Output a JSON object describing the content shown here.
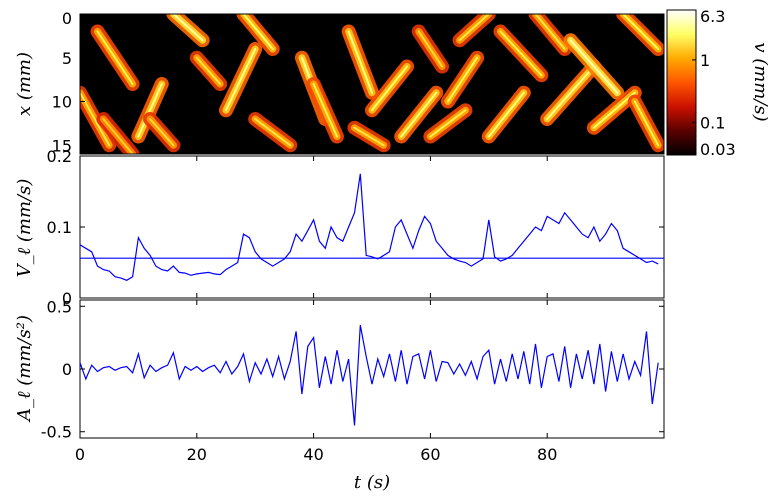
{
  "chart_data": [
    {
      "type": "heatmap",
      "title": "",
      "xlabel": "",
      "ylabel": "x (mm)",
      "xlim": [
        0,
        100
      ],
      "ylim": [
        0,
        16
      ],
      "y_inverted": true,
      "yticks": [
        0,
        5,
        10,
        15
      ],
      "ytick_labels": [
        "0",
        "5",
        "10",
        "15"
      ],
      "colorbar": {
        "label": "v (mm/s)",
        "scale": "log",
        "range": [
          0.03,
          6.3
        ],
        "ticks": [
          6.3,
          1,
          0.1,
          0.03
        ],
        "tick_labels": [
          "6.3",
          "1",
          "0.1",
          "0.03"
        ],
        "colormap": "hot",
        "colors": [
          "#000000",
          "#5a0000",
          "#cc1100",
          "#ff5500",
          "#ffaa00",
          "#ffff66",
          "#ffffff"
        ]
      },
      "bands": [
        {
          "t0": 0,
          "x0": 9,
          "t1": 5,
          "x1": 15,
          "v": 0.9
        },
        {
          "t0": 3,
          "x0": 2,
          "t1": 9,
          "x1": 8,
          "v": 1.0
        },
        {
          "t0": 4,
          "x0": 12,
          "t1": 9,
          "x1": 16,
          "v": 0.7
        },
        {
          "t0": 10,
          "x0": 14,
          "t1": 14,
          "x1": 8,
          "v": 1.4
        },
        {
          "t0": 12,
          "x0": 12,
          "t1": 16,
          "x1": 15,
          "v": 0.8
        },
        {
          "t0": 16,
          "x0": 0,
          "t1": 21,
          "x1": 3,
          "v": 1.6
        },
        {
          "t0": 20,
          "x0": 5,
          "t1": 24,
          "x1": 8,
          "v": 0.9
        },
        {
          "t0": 25,
          "x0": 11,
          "t1": 30,
          "x1": 4,
          "v": 1.4
        },
        {
          "t0": 28,
          "x0": 0,
          "t1": 33,
          "x1": 4,
          "v": 1.2
        },
        {
          "t0": 30,
          "x0": 12,
          "t1": 36,
          "x1": 15,
          "v": 0.9
        },
        {
          "t0": 38,
          "x0": 5,
          "t1": 42,
          "x1": 12,
          "v": 1.5
        },
        {
          "t0": 40,
          "x0": 8,
          "t1": 44,
          "x1": 14,
          "v": 1.0
        },
        {
          "t0": 46,
          "x0": 2,
          "t1": 50,
          "x1": 9,
          "v": 1.3
        },
        {
          "t0": 47,
          "x0": 13,
          "t1": 52,
          "x1": 15,
          "v": 0.9
        },
        {
          "t0": 50,
          "x0": 11,
          "t1": 56,
          "x1": 6,
          "v": 1.2
        },
        {
          "t0": 55,
          "x0": 14,
          "t1": 61,
          "x1": 9,
          "v": 1.3
        },
        {
          "t0": 58,
          "x0": 2,
          "t1": 62,
          "x1": 6,
          "v": 0.8
        },
        {
          "t0": 60,
          "x0": 14,
          "t1": 66,
          "x1": 11,
          "v": 1.0
        },
        {
          "t0": 63,
          "x0": 10,
          "t1": 68,
          "x1": 5,
          "v": 1.1
        },
        {
          "t0": 65,
          "x0": 3,
          "t1": 70,
          "x1": 0,
          "v": 0.9
        },
        {
          "t0": 70,
          "x0": 14,
          "t1": 76,
          "x1": 9,
          "v": 1.3
        },
        {
          "t0": 72,
          "x0": 2,
          "t1": 79,
          "x1": 7,
          "v": 1.0
        },
        {
          "t0": 78,
          "x0": 0,
          "t1": 83,
          "x1": 4,
          "v": 0.9
        },
        {
          "t0": 80,
          "x0": 12,
          "t1": 88,
          "x1": 6,
          "v": 1.4
        },
        {
          "t0": 84,
          "x0": 3,
          "t1": 92,
          "x1": 9,
          "v": 1.8
        },
        {
          "t0": 88,
          "x0": 13,
          "t1": 95,
          "x1": 9,
          "v": 1.2
        },
        {
          "t0": 93,
          "x0": 0,
          "t1": 99,
          "x1": 4,
          "v": 1.1
        },
        {
          "t0": 95,
          "x0": 10,
          "t1": 99,
          "x1": 15,
          "v": 1.0
        }
      ]
    },
    {
      "type": "line",
      "title": "",
      "xlabel": "",
      "ylabel": "V_ℓ (mm/s)",
      "xlim": [
        0,
        100
      ],
      "ylim": [
        0,
        0.2
      ],
      "yticks": [
        0,
        0.1,
        0.2
      ],
      "ytick_labels": [
        "0",
        "0.1",
        "0.2"
      ],
      "series": [
        {
          "color": "#0000ff",
          "x": [
            0,
            1,
            2,
            3,
            4,
            5,
            6,
            7,
            8,
            9,
            10,
            11,
            12,
            13,
            14,
            15,
            16,
            17,
            18,
            19,
            20,
            21,
            22,
            23,
            24,
            25,
            26,
            27,
            28,
            29,
            30,
            31,
            32,
            33,
            34,
            35,
            36,
            37,
            38,
            39,
            40,
            41,
            42,
            43,
            44,
            45,
            46,
            47,
            48,
            49,
            50,
            51,
            52,
            53,
            54,
            55,
            56,
            57,
            58,
            59,
            60,
            61,
            62,
            63,
            64,
            65,
            66,
            67,
            68,
            69,
            70,
            71,
            72,
            73,
            74,
            75,
            76,
            77,
            78,
            79,
            80,
            81,
            82,
            83,
            84,
            85,
            86,
            87,
            88,
            89,
            90,
            91,
            92,
            93,
            94,
            95,
            96,
            97,
            98,
            99
          ],
          "values": [
            0.075,
            0.07,
            0.065,
            0.045,
            0.04,
            0.038,
            0.03,
            0.028,
            0.025,
            0.03,
            0.085,
            0.07,
            0.06,
            0.045,
            0.04,
            0.038,
            0.045,
            0.036,
            0.035,
            0.032,
            0.034,
            0.035,
            0.036,
            0.034,
            0.033,
            0.04,
            0.045,
            0.05,
            0.09,
            0.085,
            0.065,
            0.055,
            0.05,
            0.045,
            0.05,
            0.055,
            0.065,
            0.09,
            0.08,
            0.095,
            0.11,
            0.08,
            0.07,
            0.1,
            0.085,
            0.08,
            0.1,
            0.12,
            0.175,
            0.06,
            0.058,
            0.055,
            0.06,
            0.065,
            0.1,
            0.11,
            0.09,
            0.07,
            0.095,
            0.115,
            0.105,
            0.08,
            0.07,
            0.06,
            0.055,
            0.052,
            0.05,
            0.045,
            0.05,
            0.055,
            0.11,
            0.058,
            0.052,
            0.055,
            0.06,
            0.07,
            0.08,
            0.09,
            0.1,
            0.095,
            0.115,
            0.11,
            0.105,
            0.12,
            0.11,
            0.1,
            0.09,
            0.085,
            0.1,
            0.08,
            0.09,
            0.105,
            0.095,
            0.07,
            0.065,
            0.06,
            0.055,
            0.05,
            0.052,
            0.048
          ]
        },
        {
          "color": "#0000ff",
          "x": [
            0,
            100
          ],
          "values": [
            0.056,
            0.056
          ]
        }
      ]
    },
    {
      "type": "line",
      "title": "",
      "xlabel": "t (s)",
      "ylabel": "A_ℓ (mm/s²)",
      "xlim": [
        0,
        100
      ],
      "ylim": [
        -0.55,
        0.55
      ],
      "yticks": [
        -0.5,
        0,
        0.5
      ],
      "ytick_labels": [
        "-0.5",
        "0",
        "0.5"
      ],
      "xticks": [
        0,
        20,
        40,
        60,
        80
      ],
      "xtick_labels": [
        "0",
        "20",
        "40",
        "60",
        "80"
      ],
      "series": [
        {
          "color": "#0000ff",
          "x": [
            0,
            1,
            2,
            3,
            4,
            5,
            6,
            7,
            8,
            9,
            10,
            11,
            12,
            13,
            14,
            15,
            16,
            17,
            18,
            19,
            20,
            21,
            22,
            23,
            24,
            25,
            26,
            27,
            28,
            29,
            30,
            31,
            32,
            33,
            34,
            35,
            36,
            37,
            38,
            39,
            40,
            41,
            42,
            43,
            44,
            45,
            46,
            47,
            48,
            49,
            50,
            51,
            52,
            53,
            54,
            55,
            56,
            57,
            58,
            59,
            60,
            61,
            62,
            63,
            64,
            65,
            66,
            67,
            68,
            69,
            70,
            71,
            72,
            73,
            74,
            75,
            76,
            77,
            78,
            79,
            80,
            81,
            82,
            83,
            84,
            85,
            86,
            87,
            88,
            89,
            90,
            91,
            92,
            93,
            94,
            95,
            96,
            97,
            98,
            99
          ],
          "values": [
            0.05,
            -0.08,
            0.03,
            -0.02,
            0.01,
            0.02,
            -0.01,
            0.01,
            0.02,
            -0.03,
            0.12,
            -0.07,
            0.03,
            -0.02,
            0.01,
            0.03,
            0.13,
            -0.08,
            0.02,
            -0.01,
            0.02,
            -0.02,
            0.01,
            0.03,
            -0.03,
            0.06,
            -0.04,
            0.02,
            0.12,
            -0.1,
            0.05,
            -0.04,
            0.08,
            -0.06,
            0.1,
            -0.08,
            0.06,
            0.3,
            -0.2,
            0.18,
            0.25,
            -0.15,
            0.1,
            -0.12,
            0.15,
            -0.1,
            0.08,
            -0.45,
            0.35,
            0.1,
            -0.12,
            0.08,
            -0.06,
            0.12,
            -0.1,
            0.15,
            -0.12,
            0.1,
            0.12,
            -0.08,
            0.15,
            -0.1,
            0.06,
            0.05,
            -0.04,
            0.04,
            -0.05,
            0.06,
            -0.08,
            0.1,
            0.15,
            -0.12,
            0.08,
            -0.1,
            0.12,
            -0.08,
            0.14,
            -0.12,
            0.2,
            -0.15,
            0.1,
            0.12,
            -0.1,
            0.18,
            -0.15,
            0.12,
            -0.08,
            0.15,
            -0.12,
            0.2,
            -0.18,
            0.14,
            -0.1,
            0.12,
            -0.08,
            0.06,
            -0.05,
            0.3,
            -0.28,
            0.05
          ]
        }
      ]
    }
  ]
}
